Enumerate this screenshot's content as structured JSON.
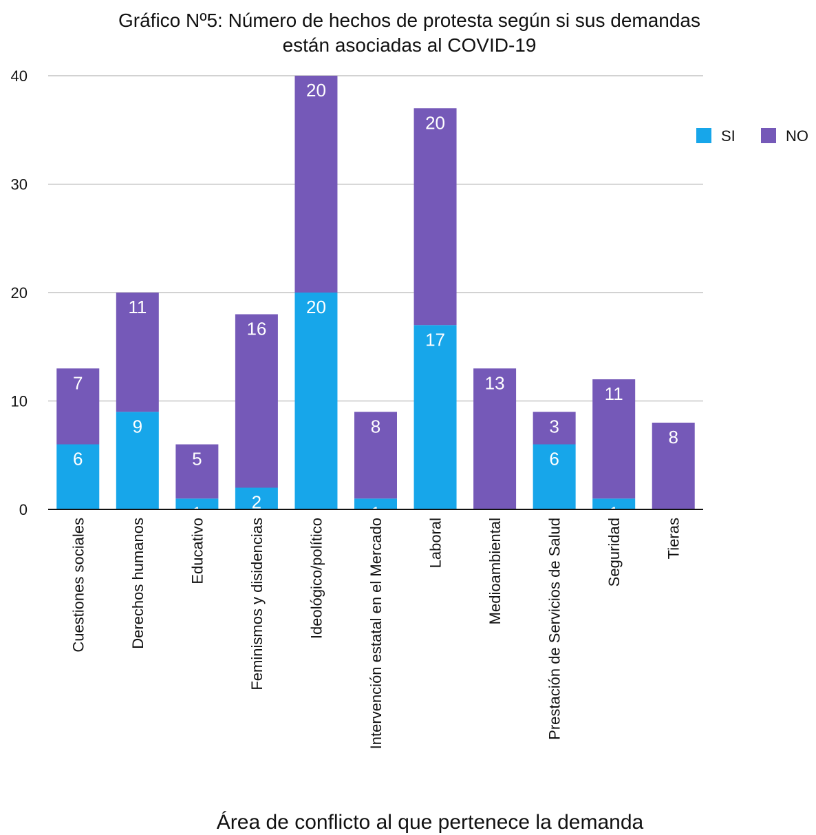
{
  "chart_data": {
    "type": "bar",
    "stacked": true,
    "title": [
      "Gráfico Nº5: Número de hechos de protesta según si sus demandas",
      "están asociadas al COVID-19"
    ],
    "xlabel": "Área de conflicto al que pertenece la demanda",
    "ylabel": "",
    "ylim": [
      0,
      40
    ],
    "yticks": [
      0,
      10,
      20,
      30,
      40
    ],
    "grid": true,
    "legend": "top-right",
    "categories": [
      "Cuestiones sociales",
      "Derechos humanos",
      "Educativo",
      "Feminismos y disidencias",
      "Ideológico/político",
      "Intervención estatal en el Mercado",
      "Laboral",
      "Medioambiental",
      "Prestación de Servicios de Salud",
      "Seguridad",
      "Tieras"
    ],
    "series": [
      {
        "name": "SI",
        "color": "#17a6ea",
        "values": [
          6,
          9,
          1,
          2,
          20,
          1,
          17,
          0,
          6,
          1,
          0
        ]
      },
      {
        "name": "NO",
        "color": "#7559b8",
        "values": [
          7,
          11,
          5,
          16,
          20,
          8,
          20,
          13,
          3,
          11,
          8
        ]
      }
    ]
  }
}
